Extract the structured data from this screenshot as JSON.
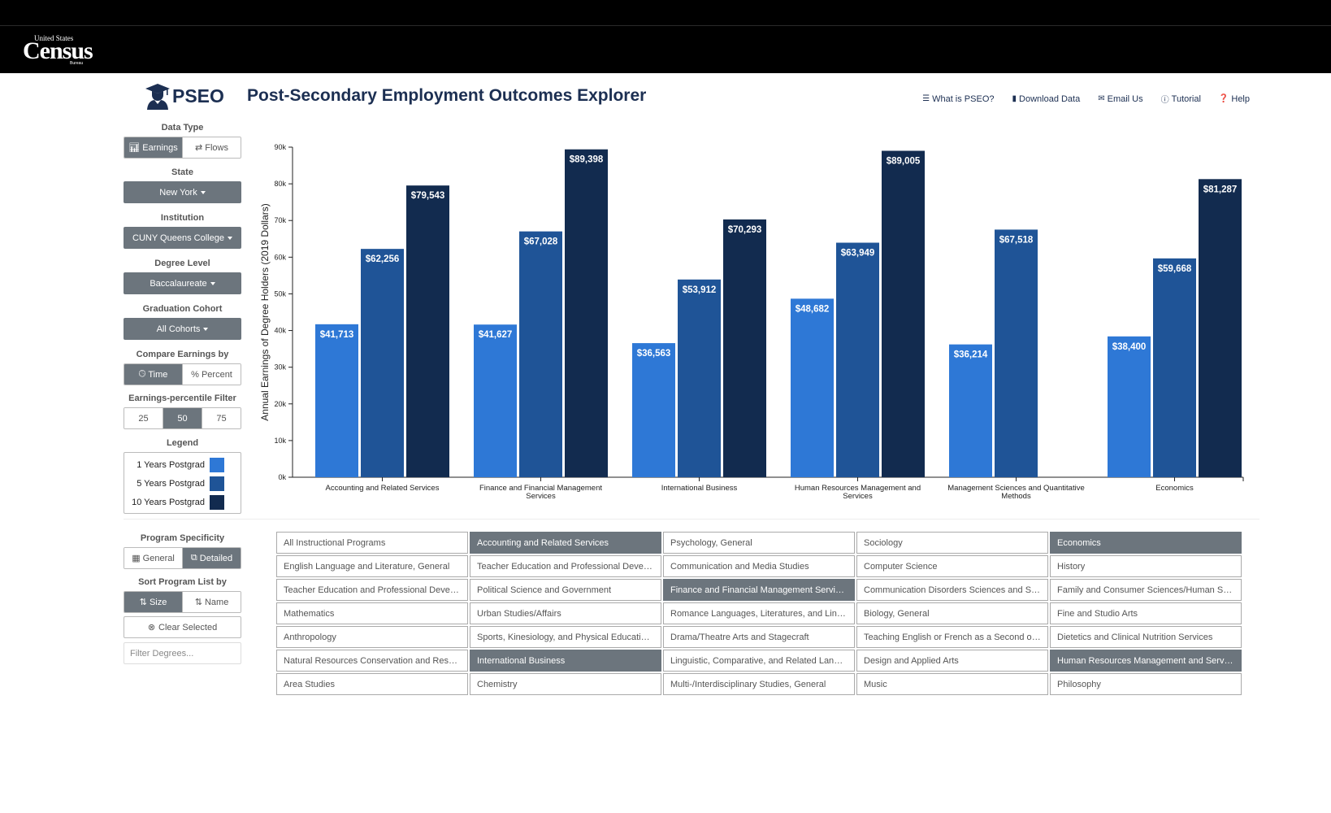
{
  "census_logo": {
    "line1": "United States",
    "line2": "Census",
    "line3": "Bureau"
  },
  "app": {
    "logo_text": "PSEO",
    "title": "Post-Secondary Employment Outcomes Explorer"
  },
  "nav": [
    {
      "label": "What is PSEO?",
      "icon": "list-icon"
    },
    {
      "label": "Download Data",
      "icon": "file-icon"
    },
    {
      "label": "Email Us",
      "icon": "envelope-icon"
    },
    {
      "label": "Tutorial",
      "icon": "info-icon"
    },
    {
      "label": "Help",
      "icon": "question-icon"
    }
  ],
  "sidebar": {
    "data_type": {
      "label": "Data Type",
      "options": [
        "Earnings",
        "Flows"
      ],
      "selected": "Earnings"
    },
    "state": {
      "label": "State",
      "value": "New York"
    },
    "institution": {
      "label": "Institution",
      "value": "CUNY Queens College"
    },
    "degree_level": {
      "label": "Degree Level",
      "value": "Baccalaureate"
    },
    "cohort": {
      "label": "Graduation Cohort",
      "value": "All Cohorts"
    },
    "compare_by": {
      "label": "Compare Earnings by",
      "options": [
        "Time",
        "Percent"
      ],
      "selected": "Time"
    },
    "percentile": {
      "label": "Earnings-percentile Filter",
      "options": [
        "25",
        "50",
        "75"
      ],
      "selected": "50"
    },
    "legend": {
      "label": "Legend",
      "items": [
        {
          "label": "1 Years Postgrad",
          "color": "#2e78d6"
        },
        {
          "label": "5 Years Postgrad",
          "color": "#1f5497"
        },
        {
          "label": "10 Years Postgrad",
          "color": "#122b4f"
        }
      ]
    },
    "specificity": {
      "label": "Program Specificity",
      "options": [
        "General",
        "Detailed"
      ],
      "selected": "Detailed"
    },
    "sort": {
      "label": "Sort Program List by",
      "options": [
        "Size",
        "Name"
      ],
      "selected": "Size"
    },
    "clear_label": "Clear Selected",
    "filter_placeholder": "Filter Degrees..."
  },
  "chart_data": {
    "type": "bar",
    "ylabel": "Annual Earnings of Degree Holders (2019 Dollars)",
    "ylim": [
      0,
      90000
    ],
    "yticks": [
      "0k",
      "10k",
      "20k",
      "30k",
      "40k",
      "50k",
      "60k",
      "70k",
      "80k",
      "90k"
    ],
    "grid": false,
    "categories": [
      [
        "Accounting and Related Services"
      ],
      [
        "Finance and Financial Management",
        "Services"
      ],
      [
        "International Business"
      ],
      [
        "Human Resources Management and",
        "Services"
      ],
      [
        "Management Sciences and Quantitative",
        "Methods"
      ],
      [
        "Economics"
      ]
    ],
    "series": [
      {
        "name": "1 Years Postgrad",
        "color": "#2e78d6",
        "values": [
          41713,
          41627,
          36563,
          48682,
          36214,
          38400
        ],
        "labels": [
          "$41,713",
          "$41,627",
          "$36,563",
          "$48,682",
          "$36,214",
          "$38,400"
        ]
      },
      {
        "name": "5 Years Postgrad",
        "color": "#1f5497",
        "values": [
          62256,
          67028,
          53912,
          63949,
          67518,
          59668
        ],
        "labels": [
          "$62,256",
          "$67,028",
          "$53,912",
          "$63,949",
          "$67,518",
          "$59,668"
        ]
      },
      {
        "name": "10 Years Postgrad",
        "color": "#122b4f",
        "values": [
          79543,
          89398,
          70293,
          89005,
          null,
          81287
        ],
        "labels": [
          "$79,543",
          "$89,398",
          "$70,293",
          "$89,005",
          "",
          "$81,287"
        ]
      }
    ]
  },
  "programs": [
    "All Instructional Programs",
    "Accounting and Related Services",
    "Psychology, General",
    "Sociology",
    "Economics",
    "English Language and Literature, General",
    "Teacher Education and Professional Develop...",
    "Communication and Media Studies",
    "Computer Science",
    "History",
    "Teacher Education and Professional Develop...",
    "Political Science and Government",
    "Finance and Financial Management Services",
    "Communication Disorders Sciences and Ser...",
    "Family and Consumer Sciences/Human Scie...",
    "Mathematics",
    "Urban Studies/Affairs",
    "Romance Languages, Literatures, and Lingui...",
    "Biology, General",
    "Fine and Studio Arts",
    "Anthropology",
    "Sports, Kinesiology, and Physical Education/...",
    "Drama/Theatre Arts and Stagecraft",
    "Teaching English or French as a Second or ...",
    "Dietetics and Clinical Nutrition Services",
    "Natural Resources Conservation and Research",
    "International Business",
    "Linguistic, Comparative, and Related Langua...",
    "Design and Applied Arts",
    "Human Resources Management and Services",
    "Area Studies",
    "Chemistry",
    "Multi-/Interdisciplinary Studies, General",
    "Music",
    "Philosophy"
  ],
  "selected_programs": [
    1,
    4,
    12,
    26,
    29
  ]
}
